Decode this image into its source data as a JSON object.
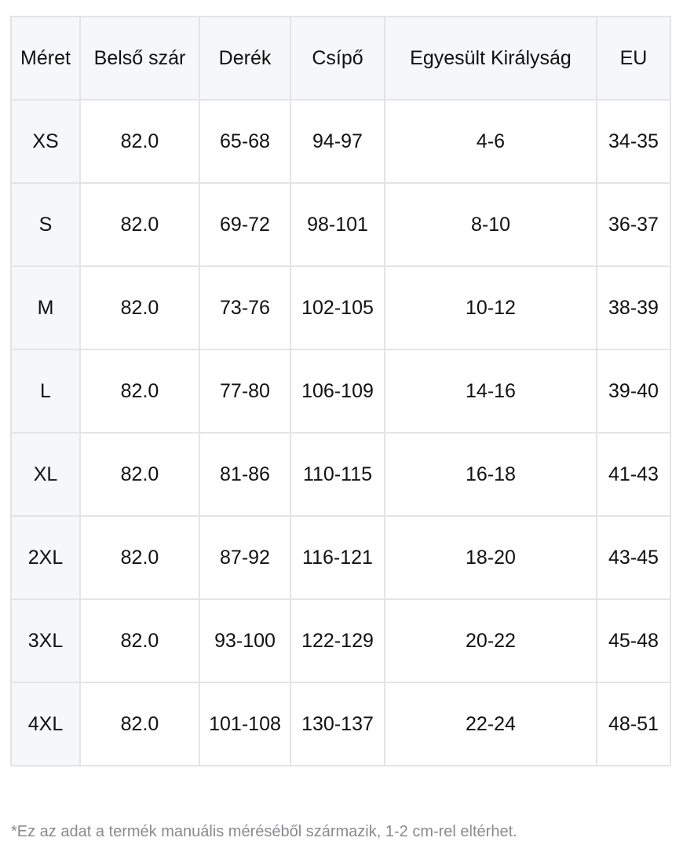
{
  "table": {
    "headers": [
      "Méret",
      "Belső szár",
      "Derék",
      "Csípő",
      "Egyesült Királyság",
      "EU"
    ],
    "rows": [
      [
        "XS",
        "82.0",
        "65-68",
        "94-97",
        "4-6",
        "34-35"
      ],
      [
        "S",
        "82.0",
        "69-72",
        "98-101",
        "8-10",
        "36-37"
      ],
      [
        "M",
        "82.0",
        "73-76",
        "102-105",
        "10-12",
        "38-39"
      ],
      [
        "L",
        "82.0",
        "77-80",
        "106-109",
        "14-16",
        "39-40"
      ],
      [
        "XL",
        "82.0",
        "81-86",
        "110-115",
        "16-18",
        "41-43"
      ],
      [
        "2XL",
        "82.0",
        "87-92",
        "116-121",
        "18-20",
        "43-45"
      ],
      [
        "3XL",
        "82.0",
        "93-100",
        "122-129",
        "20-22",
        "45-48"
      ],
      [
        "4XL",
        "82.0",
        "101-108",
        "130-137",
        "22-24",
        "48-51"
      ]
    ]
  },
  "footnote": "*Ez az adat a termék manuális méréséből származik, 1-2 cm-rel eltérhet."
}
